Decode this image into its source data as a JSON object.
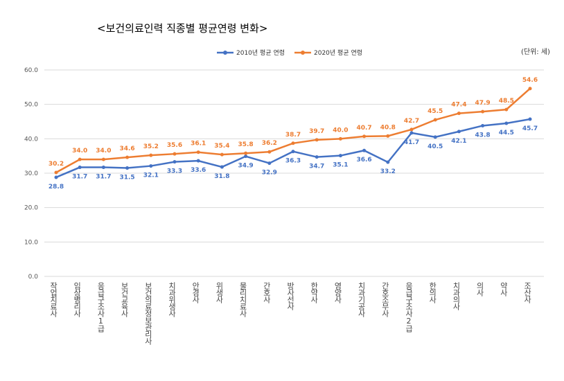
{
  "chart_data": {
    "type": "line",
    "title": "<보건의료인력 직종별 평균연령 변화>",
    "unit": "(단위: 세)",
    "categories": [
      "작업치료사",
      "임상병리사",
      "응급구조사1급",
      "보건교육사",
      "보건의료정보관리사",
      "치과위생사",
      "안경사",
      "위생사",
      "물리치료사",
      "간호사",
      "방사선사",
      "한약사",
      "영양사",
      "치과기공사",
      "간호조무사",
      "응급구조사2급",
      "한의사",
      "치과의사",
      "의사",
      "약사",
      "조산사"
    ],
    "series": [
      {
        "name": "2010년 평균 연령",
        "color": "#4472C4",
        "values": [
          28.8,
          31.7,
          31.7,
          31.5,
          32.1,
          33.3,
          33.6,
          31.8,
          34.9,
          32.9,
          36.3,
          34.7,
          35.1,
          36.6,
          33.2,
          41.7,
          40.5,
          42.1,
          43.8,
          44.5,
          45.7
        ]
      },
      {
        "name": "2020년 평균 연령",
        "color": "#ED7D31",
        "values": [
          30.2,
          34.0,
          34.0,
          34.6,
          35.2,
          35.6,
          36.1,
          35.4,
          35.8,
          36.2,
          38.7,
          39.7,
          40.0,
          40.7,
          40.8,
          42.7,
          45.5,
          47.4,
          47.9,
          48.5,
          54.6
        ]
      }
    ],
    "ylim": [
      0,
      60
    ],
    "yticks": [
      "0.0",
      "10.0",
      "20.0",
      "30.0",
      "40.0",
      "50.0",
      "60.0"
    ],
    "grid": true,
    "legend": "top"
  }
}
